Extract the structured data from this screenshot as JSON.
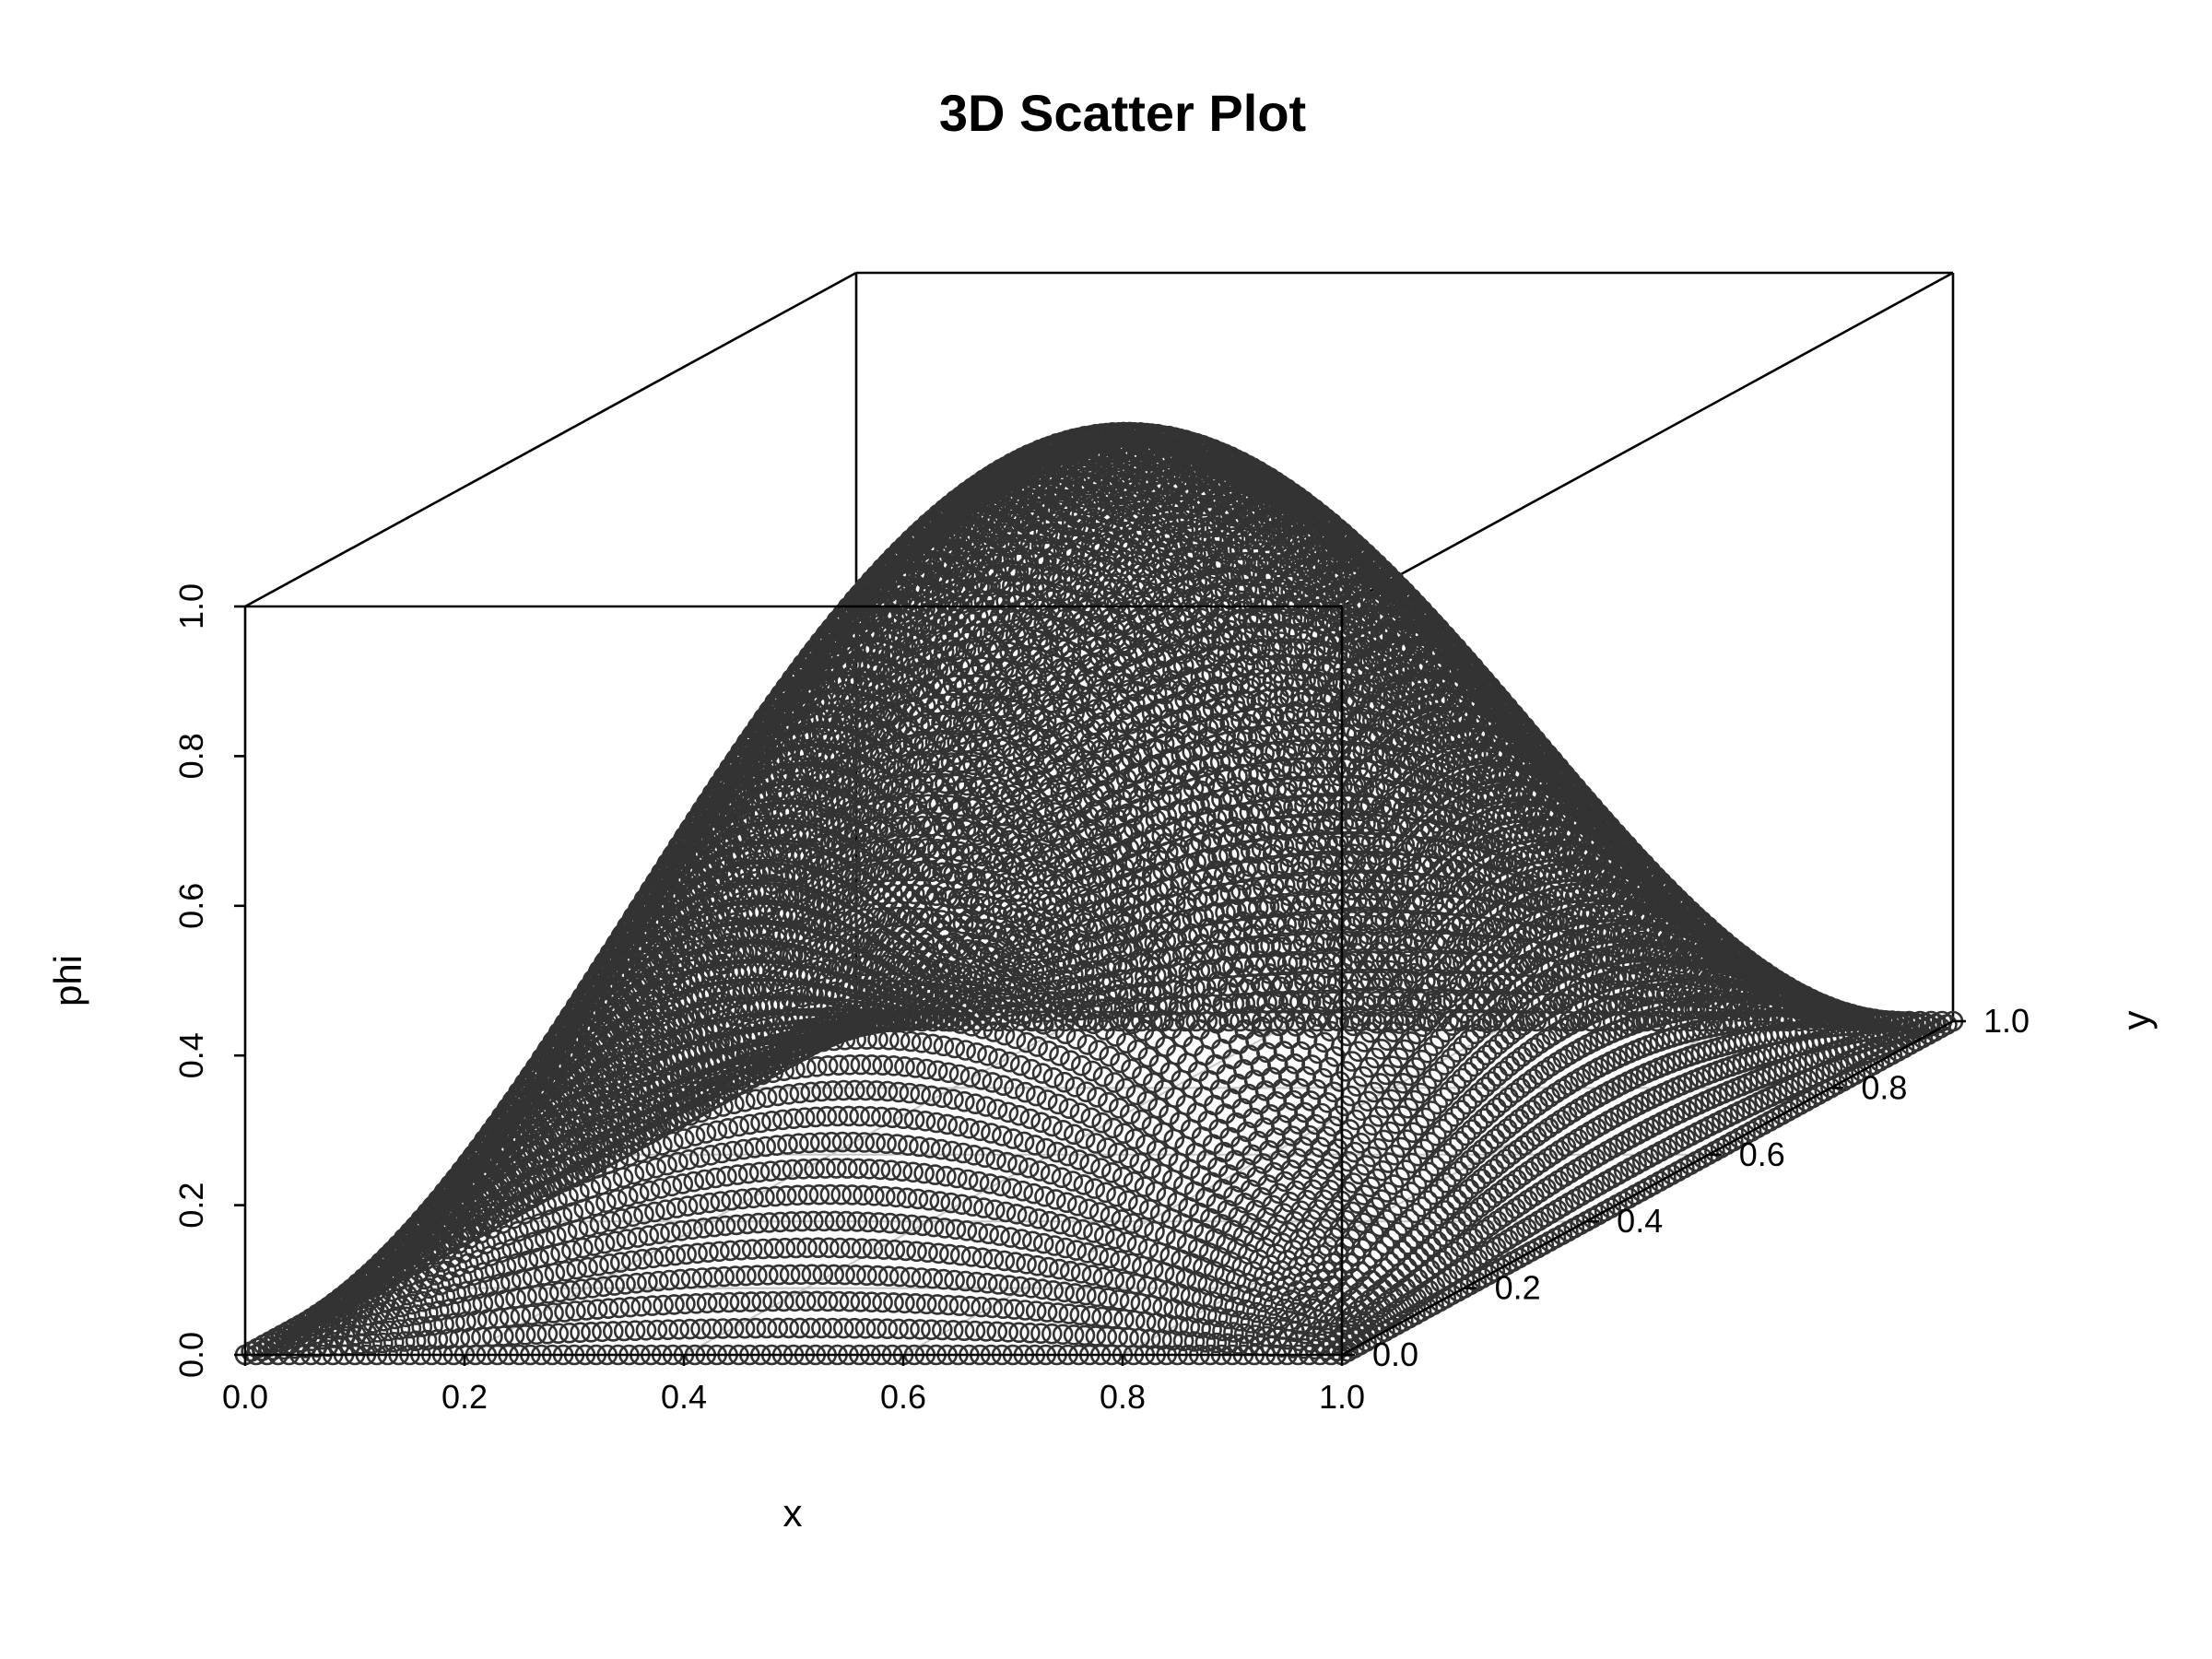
{
  "chart_data": {
    "type": "scatter",
    "title": "3D Scatter Plot",
    "xlabel": "x",
    "ylabel": "y",
    "zlabel": "phi",
    "xlim": [
      0,
      1
    ],
    "ylim": [
      0,
      1
    ],
    "zlim": [
      0,
      1
    ],
    "x_ticks": [
      "0.0",
      "0.2",
      "0.4",
      "0.6",
      "0.8",
      "1.0"
    ],
    "y_ticks": [
      "0.0",
      "0.2",
      "0.4",
      "0.6",
      "0.8",
      "1.0"
    ],
    "z_ticks": [
      "0.0",
      "0.2",
      "0.4",
      "0.6",
      "0.8",
      "1.0"
    ],
    "surface": "phi = sin(pi*x) * sin(pi*y)",
    "grid_points_per_axis": 101,
    "grid": true,
    "marker": "open-circle",
    "marker_color": "#333333"
  }
}
